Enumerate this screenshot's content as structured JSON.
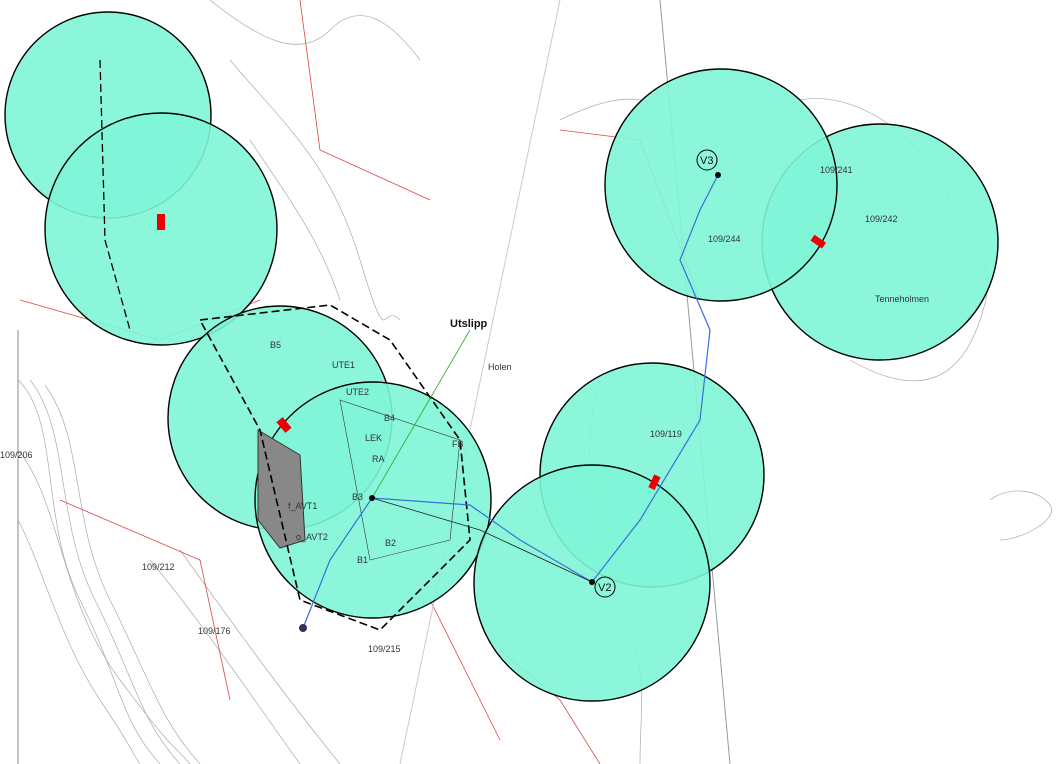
{
  "labels": {
    "outlet": "Utslipp",
    "holen": "Holen",
    "v2": "V2",
    "v3": "V3",
    "b1": "B1",
    "b2": "B2",
    "b3": "B3",
    "b4": "B4",
    "b5": "B5",
    "lek": "LEK",
    "f_avt1": "f_AVT1",
    "o_avt2": "o_AVT2",
    "ute1": "UTE1",
    "ute2": "UTE2",
    "fb": "FB",
    "ra": "RA",
    "tenneholmen": "Tenneholmen",
    "p206": "109/206",
    "p212": "109/212",
    "p215": "109/215",
    "p176": "109/176",
    "p241": "109/241",
    "p242": "109/242",
    "p119": "109/119",
    "p244": "109/244"
  }
}
